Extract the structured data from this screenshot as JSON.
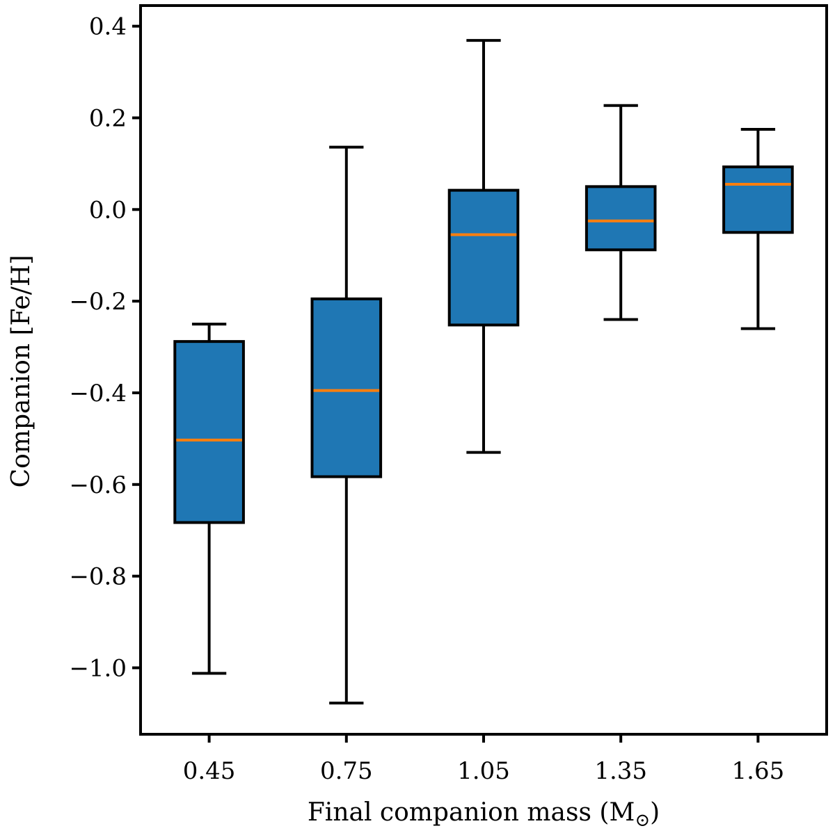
{
  "chart_data": {
    "type": "box",
    "title": "",
    "xlabel": "Final companion mass (M",
    "xlabel_subscript": "⊙",
    "xlabel_close": ")",
    "ylabel": "Companion [Fe/H]",
    "ylim": [
      -1.145,
      0.445
    ],
    "yticks": [
      0.4,
      0.2,
      0.0,
      -0.2,
      -0.4,
      -0.6,
      -0.8,
      -1.0
    ],
    "ytick_labels": [
      "0.4",
      "0.2",
      "0.0",
      "−0.2",
      "−0.4",
      "−0.6",
      "−0.8",
      "−1.0"
    ],
    "categories": [
      "0.45",
      "0.75",
      "1.05",
      "1.35",
      "1.65"
    ],
    "boxes": [
      {
        "whislo": -1.012,
        "q1": -0.683,
        "med": -0.503,
        "q3": -0.288,
        "whishi": -0.25
      },
      {
        "whislo": -1.077,
        "q1": -0.583,
        "med": -0.395,
        "q3": -0.195,
        "whishi": 0.136
      },
      {
        "whislo": -0.53,
        "q1": -0.252,
        "med": -0.055,
        "q3": 0.042,
        "whishi": 0.369
      },
      {
        "whislo": -0.24,
        "q1": -0.088,
        "med": -0.025,
        "q3": 0.05,
        "whishi": 0.227
      },
      {
        "whislo": -0.26,
        "q1": -0.05,
        "med": 0.055,
        "q3": 0.093,
        "whishi": 0.175
      }
    ],
    "colors": {
      "box": "#1f77b4",
      "median": "#ff7f0e",
      "line": "#000000"
    }
  }
}
